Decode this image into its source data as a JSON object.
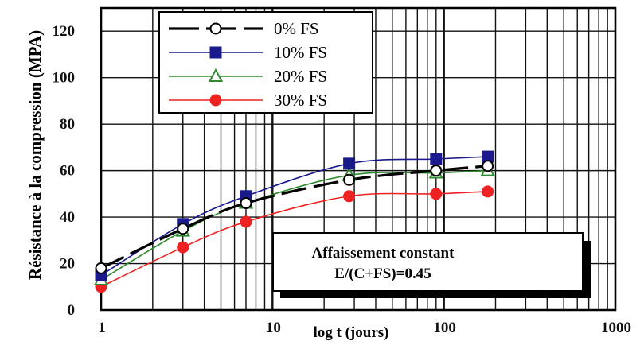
{
  "chart_data": {
    "type": "line",
    "ylabel": "Résistance à la compression (MPA)",
    "xlabel": "log t (jours)",
    "x_scale": "log",
    "xlim": [
      1,
      1000
    ],
    "ylim": [
      0,
      130
    ],
    "x_ticks": [
      "1",
      "10",
      "100",
      "1000"
    ],
    "y_ticks": [
      "0",
      "20",
      "40",
      "60",
      "80",
      "100",
      "120"
    ],
    "grid": true,
    "legend_position": "top-left",
    "series": [
      {
        "name": "0% FS",
        "color": "#000000",
        "marker": "open-circle",
        "line_style": "dashed-thick",
        "x": [
          1,
          3,
          7,
          28,
          90,
          180
        ],
        "y": [
          18,
          35,
          46,
          56,
          60,
          62
        ]
      },
      {
        "name": "10% FS",
        "color": "#1a1a8c",
        "marker": "filled-square",
        "line_style": "solid",
        "x": [
          1,
          3,
          7,
          28,
          90,
          180
        ],
        "y": [
          15,
          37,
          49,
          63,
          65,
          66
        ]
      },
      {
        "name": "20% FS",
        "color": "#2e8b2e",
        "marker": "open-triangle",
        "line_style": "solid",
        "x": [
          1,
          3,
          7,
          28,
          90,
          180
        ],
        "y": [
          13,
          34,
          46,
          58,
          59,
          60
        ]
      },
      {
        "name": "30% FS",
        "color": "#ee2222",
        "marker": "filled-circle",
        "line_style": "solid",
        "x": [
          1,
          3,
          7,
          28,
          90,
          180
        ],
        "y": [
          10,
          27,
          38,
          49,
          50,
          51
        ]
      }
    ],
    "annotation": [
      "Affaissement constant",
      "E/(C+FS)=0.45"
    ]
  }
}
